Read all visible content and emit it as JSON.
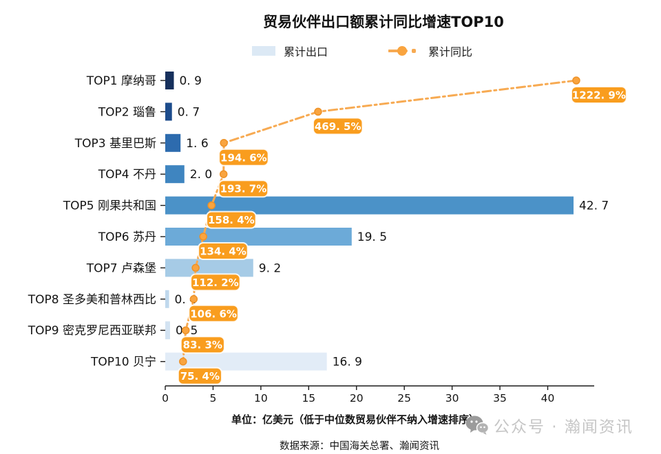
{
  "title": "贸易伙伴出口额累计同比增速TOP10",
  "legend": {
    "bar_label": "累计出口",
    "line_label": "累计同比"
  },
  "footer": {
    "unit_note": "单位：亿美元（低于中位数贸易伙伴不纳入增速排序）",
    "source": "数据来源：中国海关总署、瀚闻资讯"
  },
  "watermark": {
    "icon": "wechat-icon",
    "text": "公众号 · 瀚闻资讯"
  },
  "colors": {
    "bar_palette": [
      "#16305C",
      "#1D4C8C",
      "#2D6BAE",
      "#3F85C0",
      "#4B92C8",
      "#6CAAD8",
      "#A6CBE6",
      "#BFD8ED",
      "#D3E3F2",
      "#E2ECF7"
    ],
    "legend_swatch": "#DCE9F5",
    "line": "#F7AA52",
    "marker_fill": "#F9A43F",
    "marker_stroke": "#EE9227",
    "label_box": "#F99D1E",
    "label_box_border": "rgba(255,255,255,0.88)",
    "label_text": "#FFFFFF",
    "axis": "#1A1A1A",
    "text": "#141414"
  },
  "chart_data": {
    "type": "bar",
    "orientation": "horizontal",
    "title": "贸易伙伴出口额累计同比增速TOP10",
    "categories": [
      "TOP1 摩纳哥",
      "TOP2 瑙鲁",
      "TOP3 基里巴斯",
      "TOP4 不丹",
      "TOP5 刚果共和国",
      "TOP6 苏丹",
      "TOP7 卢森堡",
      "TOP8 圣多美和普林西比",
      "TOP9 密克罗尼西亚联邦",
      "TOP10 贝宁"
    ],
    "series": [
      {
        "name": "累计出口",
        "type": "bar",
        "unit": "亿美元",
        "values": [
          0.9,
          0.7,
          1.6,
          2.0,
          42.7,
          19.5,
          9.2,
          0.4,
          0.5,
          16.9
        ],
        "value_labels": [
          "0. 9",
          "0. 7",
          "1. 6",
          "2. 0",
          "42. 7",
          "19. 5",
          "9. 2",
          "0. 4",
          "0. 5",
          "16. 9"
        ]
      },
      {
        "name": "累计同比",
        "type": "line",
        "unit": "%",
        "values": [
          1222.9,
          469.5,
          194.6,
          193.7,
          158.4,
          134.4,
          112.2,
          106.6,
          83.3,
          75.4
        ],
        "value_labels": [
          "1222. 9%",
          "469. 5%",
          "194. 6%",
          "193. 7%",
          "158. 4%",
          "134. 4%",
          "112. 2%",
          "106. 6%",
          "83. 3%",
          "75. 4%"
        ]
      }
    ],
    "x_axis": {
      "ticks": [
        0,
        5,
        10,
        15,
        20,
        25,
        30,
        35,
        40
      ],
      "range": [
        0,
        45
      ]
    },
    "legend_position": "top",
    "grid": false
  }
}
